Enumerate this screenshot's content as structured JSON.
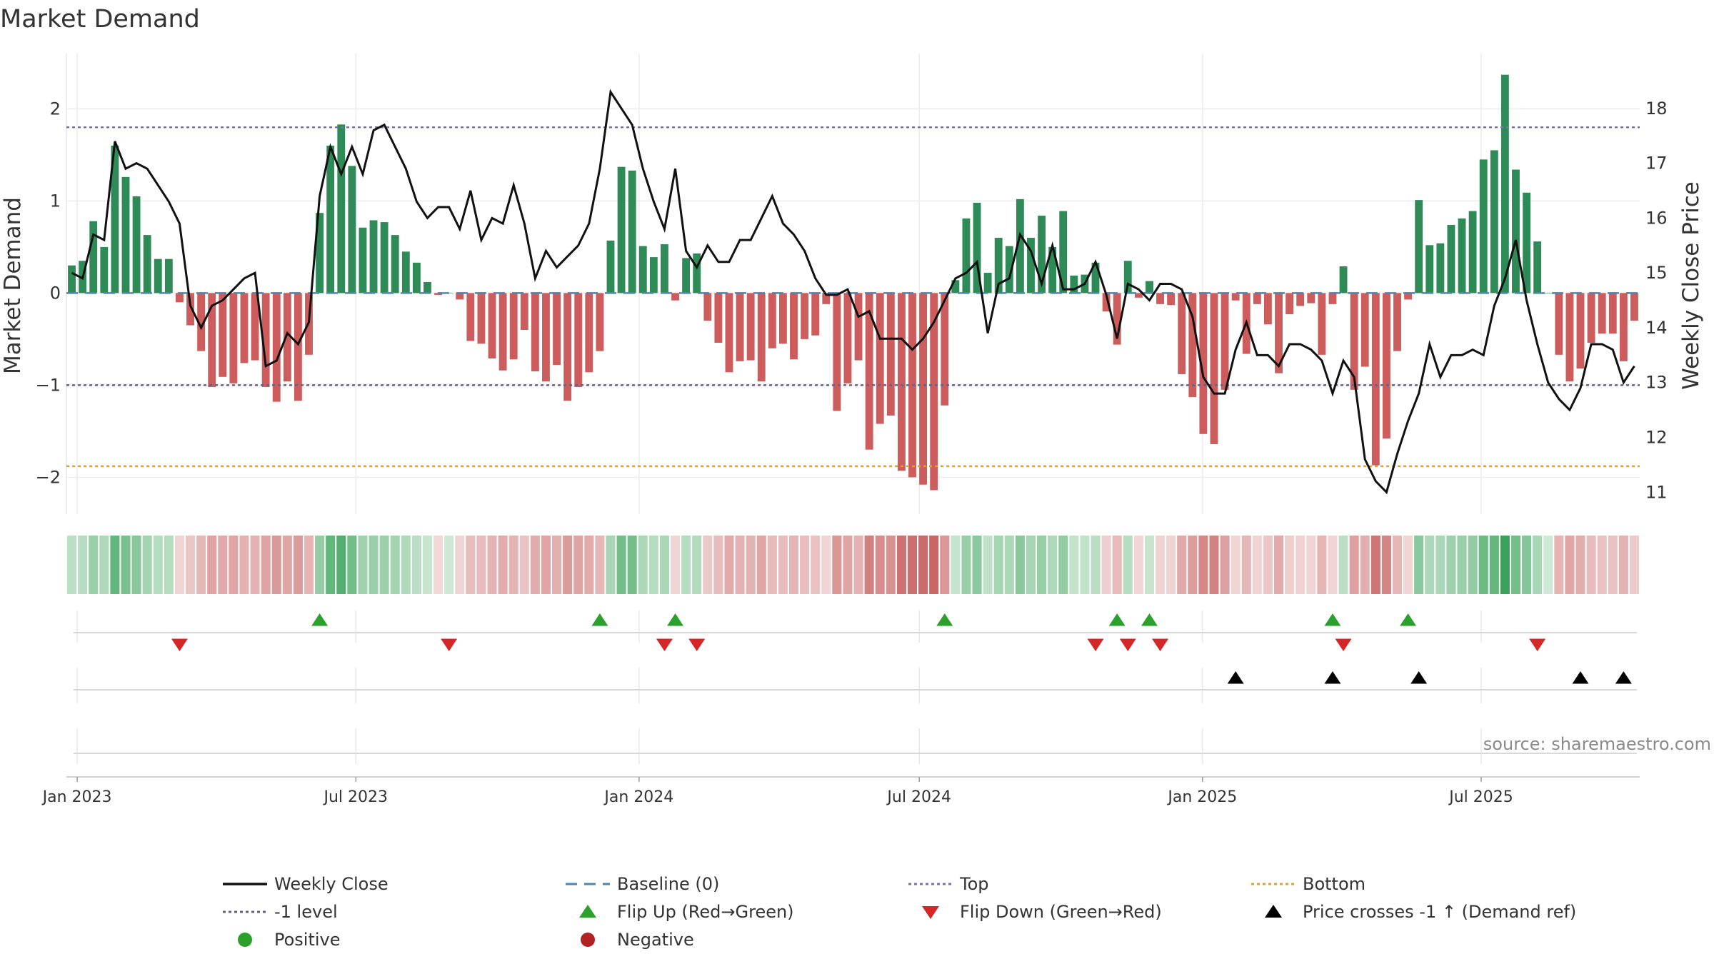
{
  "chart_data": {
    "type": "bar",
    "title": "Market Demand",
    "ylabel_left": "Market Demand",
    "ylabel_right": "Weekly Close Price",
    "ylim_left": [
      -2.4,
      2.6
    ],
    "ylim_right": [
      10.6,
      19.0
    ],
    "yticks_left": [
      2,
      1,
      0,
      -1,
      -2
    ],
    "ytick_labels_left": [
      "2",
      "1",
      "0",
      "−1",
      "−2"
    ],
    "yticks_right": [
      18,
      17,
      16,
      15,
      14,
      13,
      12,
      11
    ],
    "ytick_labels_right": [
      "18",
      "17",
      "16",
      "15",
      "14",
      "13",
      "12",
      "11"
    ],
    "x_start": "2022-12-25",
    "x_end": "2025-10-12",
    "xticks": [
      {
        "date": "2023-01-01",
        "label": "Jan 2023"
      },
      {
        "date": "2023-07-01",
        "label": "Jul 2023"
      },
      {
        "date": "2024-01-01",
        "label": "Jan 2024"
      },
      {
        "date": "2024-07-01",
        "label": "Jul 2024"
      },
      {
        "date": "2025-01-01",
        "label": "Jan 2025"
      },
      {
        "date": "2025-07-01",
        "label": "Jul 2025"
      }
    ],
    "first_week": "2022-12-25",
    "reference_lines": [
      {
        "name": "Top",
        "value": 1.8,
        "color": "#7b6fb5"
      },
      {
        "name": "-1 level",
        "value": -1.0,
        "color": "#6b6080"
      },
      {
        "name": "Bottom",
        "value": -1.88,
        "color": "#e0a030"
      },
      {
        "name": "Baseline (0)",
        "value": 0.0,
        "color": "#4a85b5"
      }
    ],
    "series": [
      {
        "name": "Market Demand",
        "kind": "bar",
        "values": [
          0.3,
          0.35,
          0.78,
          0.5,
          1.6,
          1.26,
          1.05,
          0.63,
          0.37,
          0.37,
          -0.1,
          -0.35,
          -0.63,
          -1.02,
          -0.91,
          -0.98,
          -0.76,
          -0.73,
          -1.02,
          -1.18,
          -0.96,
          -1.17,
          -0.67,
          0.87,
          1.6,
          1.83,
          1.38,
          0.71,
          0.79,
          0.77,
          0.63,
          0.45,
          0.33,
          0.12,
          -0.02,
          0.0,
          -0.07,
          -0.52,
          -0.55,
          -0.71,
          -0.84,
          -0.72,
          -0.4,
          -0.85,
          -0.96,
          -0.78,
          -1.17,
          -1.02,
          -0.86,
          -0.63,
          0.57,
          1.37,
          1.33,
          0.51,
          0.39,
          0.53,
          -0.08,
          0.38,
          0.43,
          -0.3,
          -0.54,
          -0.86,
          -0.74,
          -0.73,
          -0.96,
          -0.6,
          -0.55,
          -0.72,
          -0.5,
          -0.46,
          -0.12,
          -1.28,
          -0.98,
          -0.73,
          -1.7,
          -1.42,
          -1.33,
          -1.93,
          -2.0,
          -2.08,
          -2.14,
          -1.22,
          0.14,
          0.81,
          0.98,
          0.22,
          0.6,
          0.51,
          1.02,
          0.6,
          0.84,
          0.5,
          0.89,
          0.19,
          0.2,
          0.33,
          -0.2,
          -0.56,
          0.35,
          -0.05,
          0.13,
          -0.12,
          -0.13,
          -0.88,
          -1.13,
          -1.53,
          -1.64,
          -1.05,
          -0.08,
          -0.66,
          -0.12,
          -0.34,
          -0.87,
          -0.23,
          -0.14,
          -0.11,
          -0.67,
          -0.12,
          0.29,
          -1.05,
          -0.8,
          -1.87,
          -1.58,
          -0.63,
          -0.07,
          1.01,
          0.52,
          0.54,
          0.74,
          0.81,
          0.89,
          1.45,
          1.55,
          2.37,
          1.34,
          1.09,
          0.56,
          0.0,
          -0.67,
          -0.96,
          -0.82,
          -0.54,
          -0.44,
          -0.44,
          -0.74,
          -0.3
        ]
      },
      {
        "name": "Weekly Close",
        "kind": "line",
        "values": [
          15.0,
          14.9,
          15.7,
          15.6,
          17.4,
          16.9,
          17.0,
          16.9,
          16.6,
          16.3,
          15.9,
          14.4,
          14.0,
          14.4,
          14.5,
          14.7,
          14.9,
          15.0,
          13.3,
          13.4,
          13.9,
          13.7,
          14.1,
          16.4,
          17.3,
          16.8,
          17.3,
          16.8,
          17.6,
          17.7,
          17.3,
          16.9,
          16.3,
          16.0,
          16.2,
          16.2,
          15.8,
          16.5,
          15.6,
          16.0,
          15.9,
          16.6,
          15.9,
          14.9,
          15.4,
          15.1,
          15.3,
          15.5,
          15.9,
          16.9,
          18.3,
          18.0,
          17.7,
          16.9,
          16.3,
          15.8,
          16.9,
          15.4,
          15.1,
          15.5,
          15.2,
          15.2,
          15.6,
          15.6,
          16.0,
          16.4,
          15.9,
          15.7,
          15.4,
          14.9,
          14.6,
          14.6,
          14.7,
          14.2,
          14.3,
          13.8,
          13.8,
          13.8,
          13.6,
          13.8,
          14.1,
          14.5,
          14.9,
          15.0,
          15.2,
          13.9,
          14.8,
          14.9,
          15.7,
          15.4,
          14.8,
          15.5,
          14.7,
          14.7,
          14.8,
          15.2,
          14.6,
          13.8,
          14.8,
          14.7,
          14.5,
          14.8,
          14.8,
          14.7,
          14.2,
          13.1,
          12.8,
          12.8,
          13.6,
          14.1,
          13.5,
          13.5,
          13.3,
          13.7,
          13.7,
          13.6,
          13.4,
          12.8,
          13.4,
          13.1,
          11.6,
          11.2,
          11.0,
          11.7,
          12.3,
          12.8,
          13.7,
          13.1,
          13.5,
          13.5,
          13.6,
          13.5,
          14.4,
          14.9,
          15.6,
          14.5,
          13.7,
          13.0,
          12.7,
          12.5,
          12.9,
          13.7,
          13.7,
          13.6,
          13.0,
          13.3
        ]
      }
    ],
    "heat_strip": "green/red shaded cells per week matching Market Demand sign and magnitude",
    "events": {
      "flip_up_weeks": [
        23,
        49,
        56,
        81,
        97,
        100,
        117,
        124
      ],
      "flip_down_weeks": [
        10,
        35,
        55,
        58,
        95,
        98,
        101,
        118,
        136
      ],
      "price_cross_weeks": [
        108,
        117,
        125,
        140,
        144
      ]
    }
  },
  "colors": {
    "positive_bar": "#2e8b57",
    "negative_bar": "#cd5c5c",
    "price_line": "#111111",
    "flip_up": "#2ca02c",
    "flip_down": "#d62728",
    "price_cross": "#000000",
    "positive_dot": "#2ca02c",
    "negative_dot": "#b22222",
    "strip_green_light": "#cfe8d5",
    "strip_green_dark": "#3aa35a",
    "strip_red_light": "#f2d9d9",
    "strip_red_dark": "#c86464"
  },
  "legend": [
    {
      "label": "Weekly Close",
      "symbol": "solid-line",
      "color": "#111111"
    },
    {
      "label": "Baseline (0)",
      "symbol": "dashed-line",
      "color": "#4a85b5"
    },
    {
      "label": "Top",
      "symbol": "dotted-line",
      "color": "#7b6fb5"
    },
    {
      "label": "Bottom",
      "symbol": "dotted-line",
      "color": "#e0a030"
    },
    {
      "label": "-1 level",
      "symbol": "dotted-line",
      "color": "#6b6080"
    },
    {
      "label": "Flip Up (Red→Green)",
      "symbol": "triangle-up",
      "color": "#2ca02c"
    },
    {
      "label": "Flip Down (Green→Red)",
      "symbol": "triangle-down",
      "color": "#d62728"
    },
    {
      "label": "Price crosses -1 ↑ (Demand ref)",
      "symbol": "triangle-up",
      "color": "#000000"
    },
    {
      "label": "Positive",
      "symbol": "dot",
      "color": "#2ca02c"
    },
    {
      "label": "Negative",
      "symbol": "dot",
      "color": "#b22222"
    }
  ],
  "source_note": "source: sharemaestro.com"
}
